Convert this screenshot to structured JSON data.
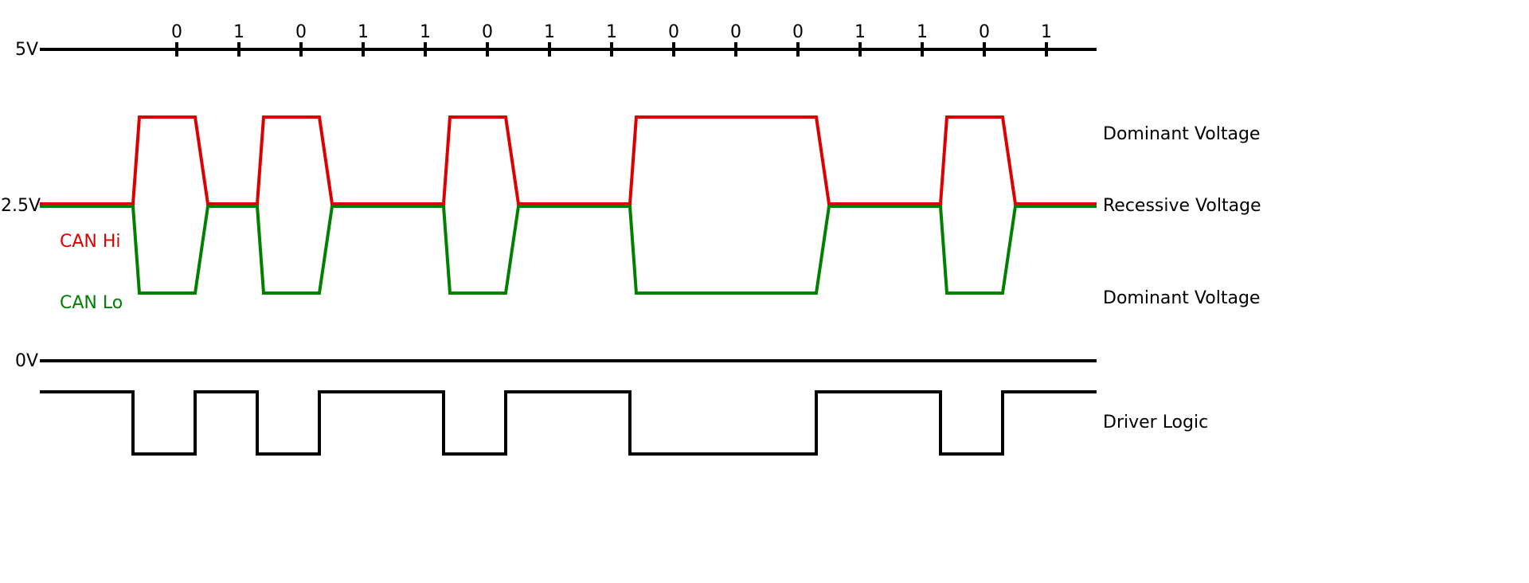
{
  "bits": [
    "0",
    "1",
    "0",
    "1",
    "1",
    "0",
    "1",
    "1",
    "0",
    "0",
    "0",
    "1",
    "1",
    "0",
    "1"
  ],
  "axis_labels": {
    "top": "5V",
    "mid": "2.5V",
    "bottom": "0V"
  },
  "signal_labels": {
    "can_hi": "CAN Hi",
    "can_lo": "CAN Lo"
  },
  "right_labels": {
    "dominant_high": "Dominant Voltage",
    "recessive": "Recessive Voltage",
    "dominant_low": "Dominant Voltage",
    "driver_logic": "Driver Logic"
  },
  "colors": {
    "can_hi": "#dd0000",
    "can_lo": "#008000",
    "axis": "#000000"
  }
}
